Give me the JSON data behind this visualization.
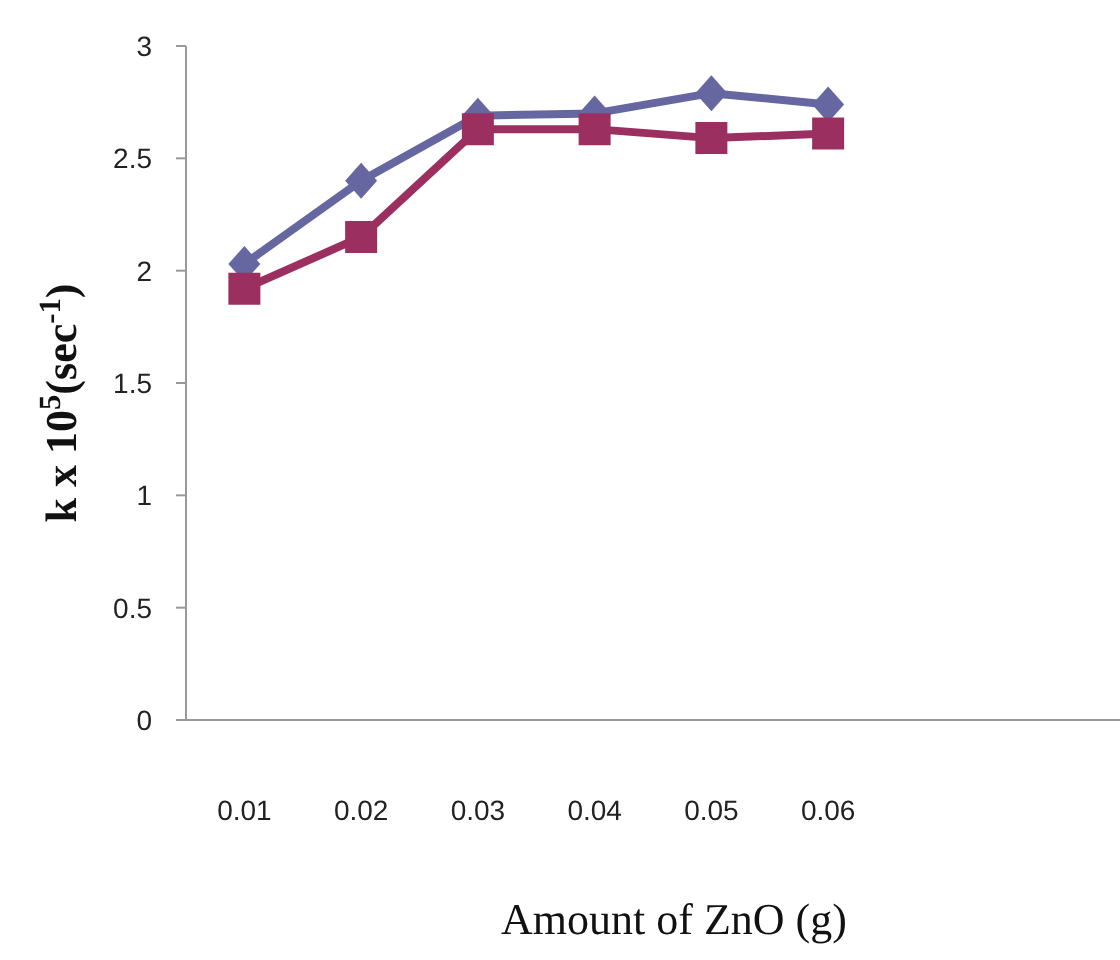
{
  "chart_data": {
    "type": "line",
    "xlabel": "Amount of ZnO (g)",
    "ylabel": "k x 10$^{5}$(sec$^{-1}$)",
    "categories": [
      "0.01",
      "0.02",
      "0.03",
      "0.04",
      "0.05",
      "0.06",
      null,
      null
    ],
    "series": [
      {
        "color": "#6667a0",
        "marker": "diamond",
        "values": [
          2.03,
          2.4,
          2.69,
          2.7,
          2.79,
          2.74,
          null,
          null
        ]
      },
      {
        "color": "#9b3060",
        "marker": "square",
        "values": [
          1.92,
          2.15,
          2.63,
          2.63,
          2.59,
          2.61,
          null,
          null
        ]
      }
    ],
    "ylim": [
      0,
      3
    ],
    "yticks": [
      0,
      0.5,
      1,
      1.5,
      2,
      2.5,
      3
    ],
    "grid": false,
    "line_style": "solid"
  }
}
